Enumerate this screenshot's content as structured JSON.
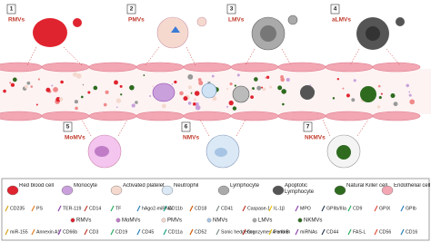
{
  "panels": [
    {
      "number": "1",
      "label": "RMVs"
    },
    {
      "number": "2",
      "label": "PMVs"
    },
    {
      "number": "3",
      "label": "LMVs"
    },
    {
      "number": "4",
      "label": "aLMVs"
    },
    {
      "number": "5",
      "label": "MoMVs"
    },
    {
      "number": "6",
      "label": "NMVs"
    },
    {
      "number": "7",
      "label": "NKMVs"
    }
  ],
  "legend": {
    "cells": [
      "Red blood cell",
      "Monocyte",
      "Activated platelet",
      "Neutrophil",
      "Lymphocyte",
      "Apoptotic Lymphocyte",
      "Natural Killer cell",
      "Endothelial cell"
    ],
    "markers_row1": [
      "CD235",
      "PS",
      "TER-119",
      "CD14",
      "TF",
      "hAgo2-miRNA",
      "CD11b",
      "CD18",
      "CD41",
      "Caspase-1",
      "IL-1β",
      "MPO",
      "GPIIb/IIIa",
      "CD9",
      "GPIX",
      "GPIb"
    ],
    "mv_types": [
      "RMVs",
      "MoMVs",
      "PMVs",
      "NMVs",
      "LMVs",
      "NKMVs"
    ],
    "markers_row2": [
      "miR-155",
      "Annexin A1",
      "CD66b",
      "CD3",
      "CD19",
      "CD45",
      "CD11a",
      "CD52",
      "Sonic hedgehog",
      "Granzymes A and B",
      "Perforin",
      "miRNAs",
      "CD44",
      "FAS-L",
      "CD56",
      "CD16"
    ]
  }
}
